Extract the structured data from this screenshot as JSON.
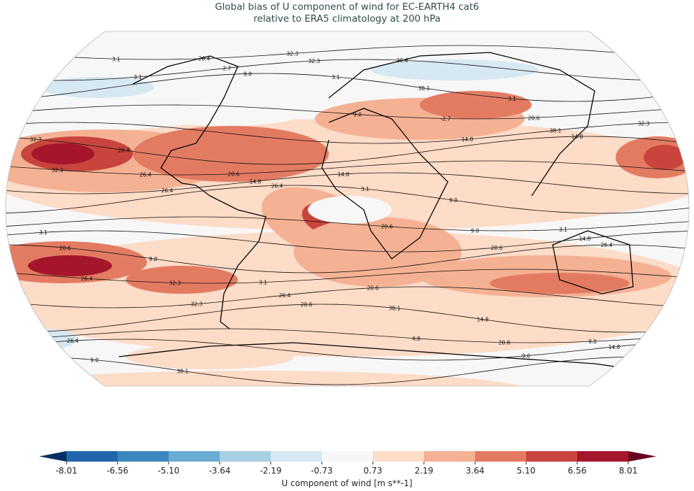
{
  "title": {
    "line1": "Global bias of U component of wind for EC-EARTH4 cat6",
    "line2": "relative to ERA5 climatology at 200 hPa"
  },
  "map": {
    "projection": "Robinson",
    "field": "U component of wind bias (shaded) with ERA5 climatology contours",
    "contour_labels": [
      "3.1",
      "3.1",
      "9.0",
      "9.0",
      "14.8",
      "14.8",
      "32.3",
      "26.4",
      "26.4",
      "20.6",
      "20.6",
      "26.4",
      "26.4",
      "32.3",
      "20.6",
      "4.8",
      "9.0",
      "3.1",
      "3.1",
      "-2.7",
      "3.1",
      "-2.7",
      "38.1",
      "32.3",
      "26.4",
      "14.8",
      "3.1",
      "9.0",
      "14.8",
      "20.6",
      "32.3",
      "26.4",
      "38.1",
      "20.6",
      "14.8",
      "9.0",
      "26.4",
      "32.3",
      "38.1",
      "20.6",
      "32.3",
      "26.4",
      "20.6",
      "14.8",
      "9.0",
      "3.1",
      "3.1",
      "9.0",
      "3.1",
      "20.6",
      "14.8",
      "9.0",
      "26.4",
      "38.1",
      "32.3",
      "20.6",
      "3.1"
    ]
  },
  "colorbar": {
    "ticks": [
      "-8.01",
      "-6.56",
      "-5.10",
      "-3.64",
      "-2.19",
      "-0.73",
      "0.73",
      "2.19",
      "3.64",
      "5.10",
      "6.56",
      "8.01"
    ],
    "colors": [
      "#2166ac",
      "#3a87c0",
      "#6aadd4",
      "#a7d0e4",
      "#d6e8f1",
      "#f7f7f7",
      "#fddcc8",
      "#f5b194",
      "#e37b63",
      "#c9443d",
      "#a5162c"
    ],
    "under_color": "#053061",
    "over_color": "#67001f",
    "label": "U component of wind [m s**-1]"
  }
}
